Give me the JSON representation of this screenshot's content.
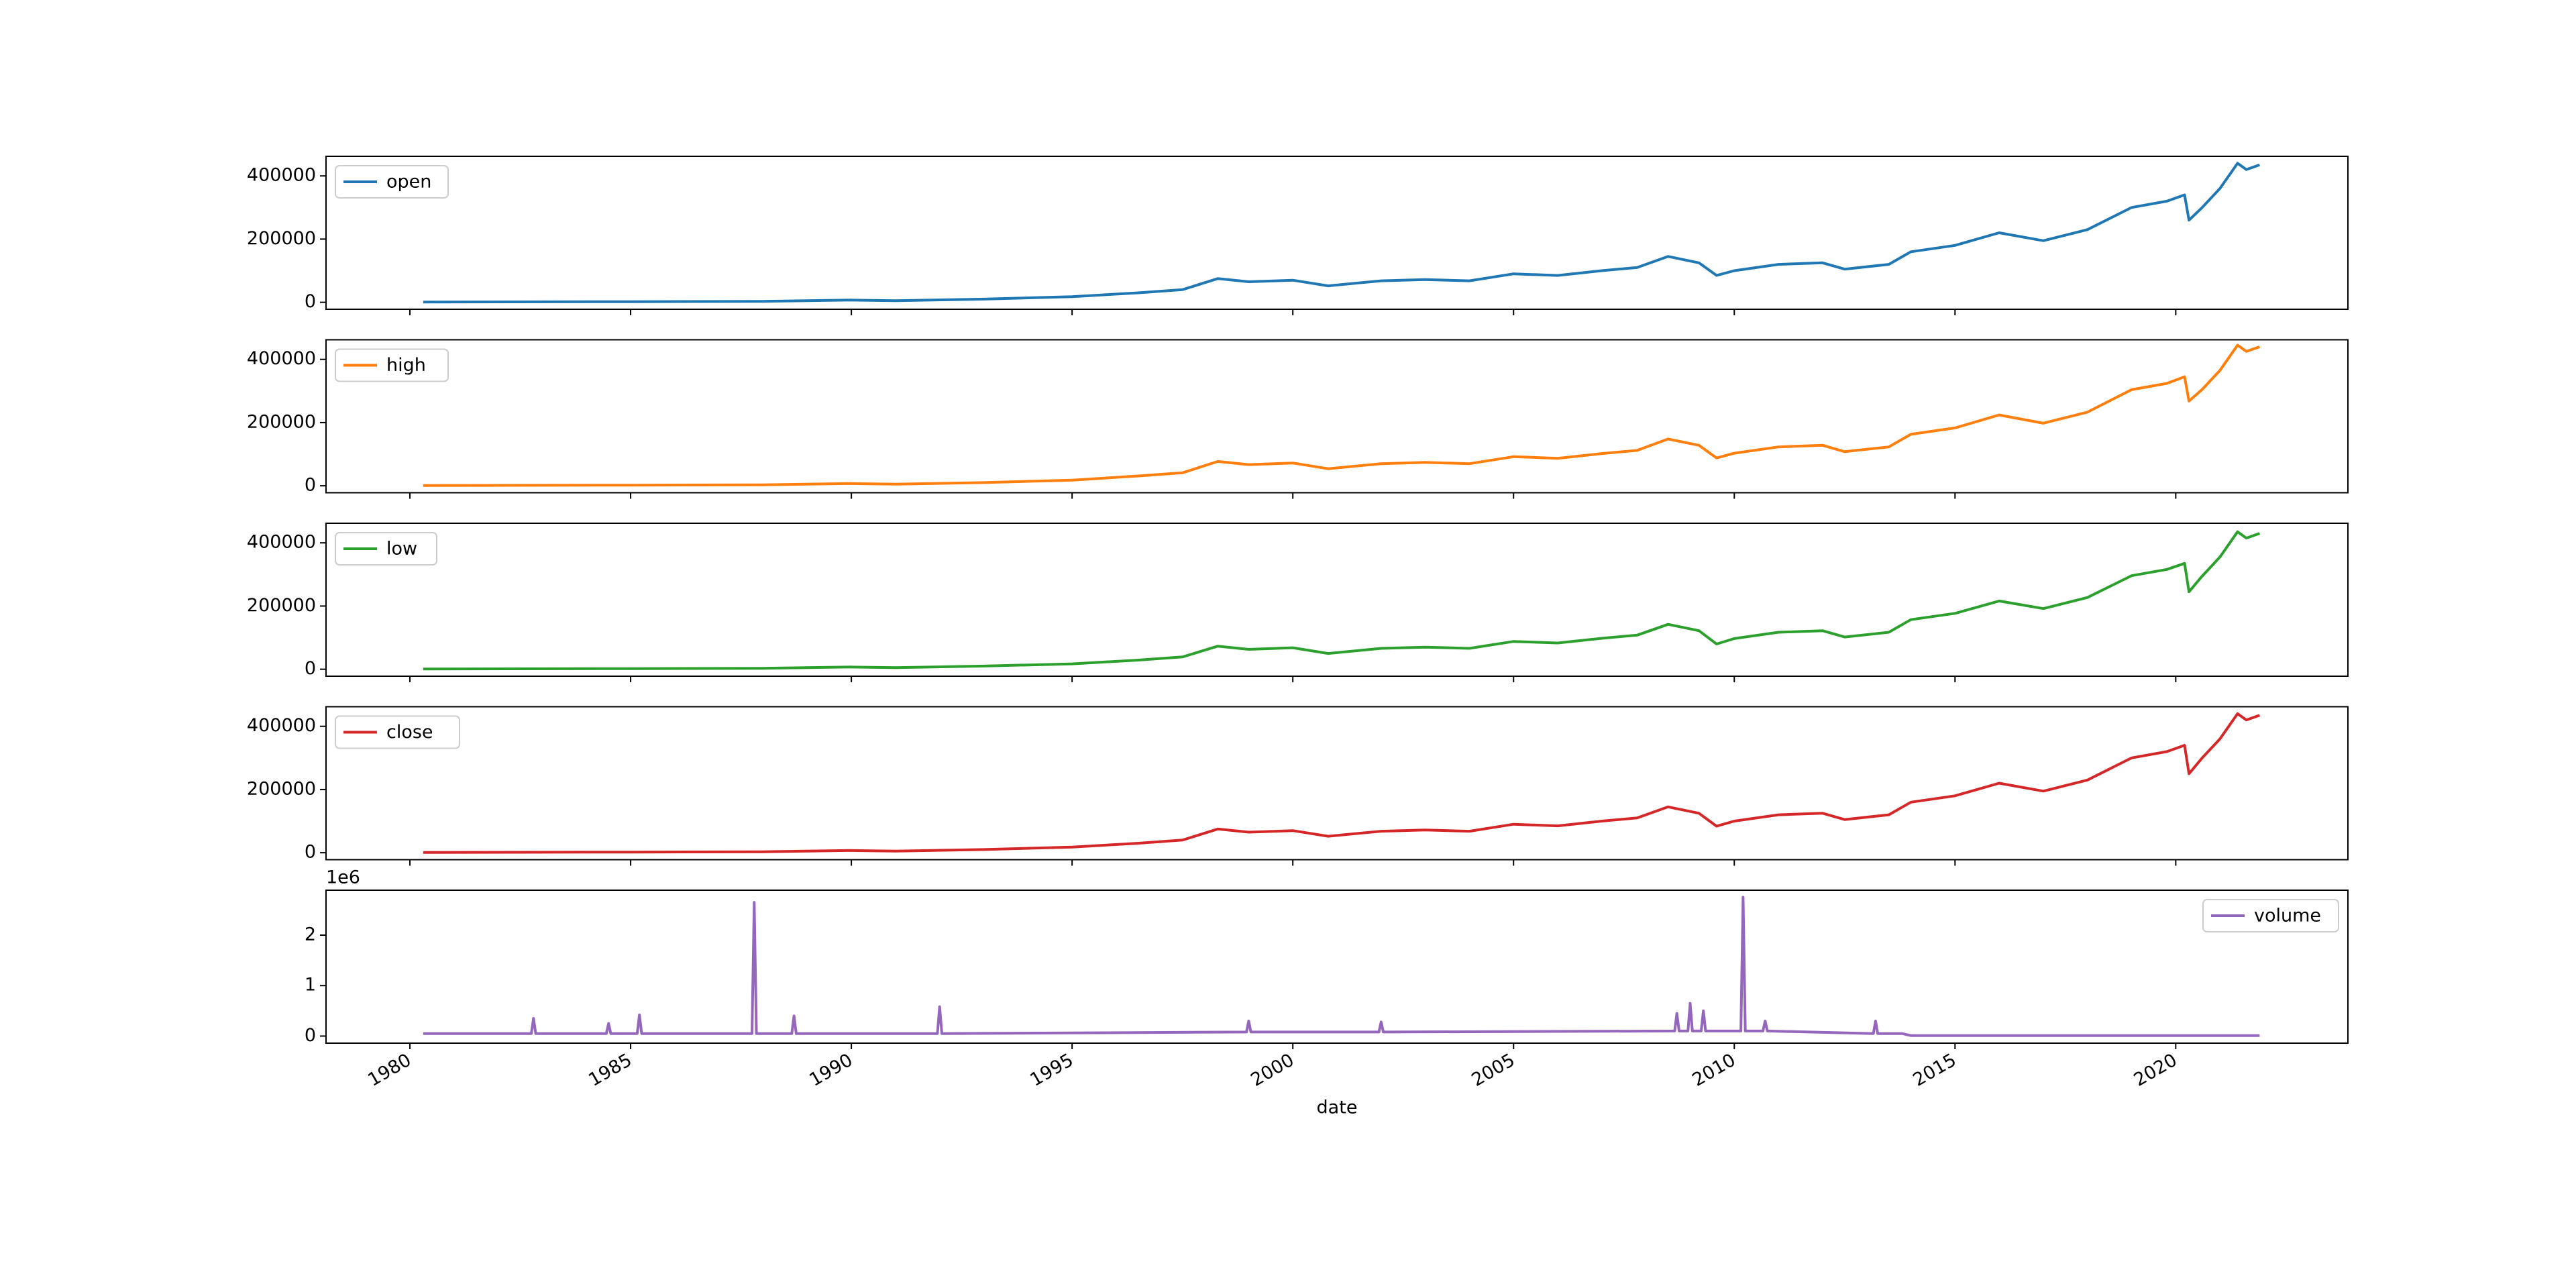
{
  "chart_data": [
    {
      "type": "line",
      "xlim": [
        1978.1,
        2023.9
      ],
      "ylim": [
        -22000,
        462000
      ],
      "yticks": [
        0,
        200000,
        400000
      ],
      "legend": "upper left",
      "x": [
        1980.3,
        1985,
        1988,
        1990,
        1991,
        1993,
        1995,
        1996.5,
        1997.5,
        1998.3,
        1999,
        2000,
        2000.8,
        2002,
        2003,
        2004,
        2005,
        2006,
        2007,
        2007.8,
        2008.5,
        2009.2,
        2009.6,
        2010,
        2011,
        2012,
        2012.5,
        2013.5,
        2014,
        2015,
        2016,
        2017,
        2018,
        2019,
        2019.8,
        2020.2,
        2020.3,
        2020.6,
        2021,
        2021.4,
        2021.6,
        2021.9
      ],
      "series": [
        {
          "name": "open",
          "color": "#1f77b4",
          "values": [
            1000,
            2000,
            3000,
            7000,
            5000,
            10000,
            18000,
            30000,
            40000,
            75000,
            65000,
            70000,
            52000,
            68000,
            72000,
            68000,
            90000,
            85000,
            100000,
            110000,
            145000,
            125000,
            85000,
            100000,
            120000,
            125000,
            105000,
            120000,
            160000,
            180000,
            220000,
            195000,
            230000,
            300000,
            320000,
            340000,
            260000,
            300000,
            360000,
            440000,
            420000,
            435000
          ]
        }
      ]
    },
    {
      "type": "line",
      "xlim": [
        1978.1,
        2023.9
      ],
      "ylim": [
        -22000,
        462000
      ],
      "yticks": [
        0,
        200000,
        400000
      ],
      "legend": "upper left",
      "x": [
        1980.3,
        1985,
        1988,
        1990,
        1991,
        1993,
        1995,
        1996.5,
        1997.5,
        1998.3,
        1999,
        2000,
        2000.8,
        2002,
        2003,
        2004,
        2005,
        2006,
        2007,
        2007.8,
        2008.5,
        2009.2,
        2009.6,
        2010,
        2011,
        2012,
        2012.5,
        2013.5,
        2014,
        2015,
        2016,
        2017,
        2018,
        2019,
        2019.8,
        2020.2,
        2020.3,
        2020.6,
        2021,
        2021.4,
        2021.6,
        2021.9
      ],
      "series": [
        {
          "name": "high",
          "color": "#ff7f0e",
          "values": [
            1000,
            2000,
            3000,
            7000,
            5000,
            10000,
            18000,
            31000,
            41000,
            77000,
            67000,
            72000,
            54000,
            70000,
            74000,
            70000,
            92000,
            87000,
            102000,
            112000,
            148000,
            128000,
            88000,
            103000,
            123000,
            128000,
            108000,
            123000,
            163000,
            183000,
            224000,
            198000,
            233000,
            304000,
            324000,
            345000,
            268000,
            305000,
            365000,
            445000,
            425000,
            440000
          ]
        }
      ]
    },
    {
      "type": "line",
      "xlim": [
        1978.1,
        2023.9
      ],
      "ylim": [
        -22000,
        462000
      ],
      "yticks": [
        0,
        200000,
        400000
      ],
      "legend": "upper left",
      "x": [
        1980.3,
        1985,
        1988,
        1990,
        1991,
        1993,
        1995,
        1996.5,
        1997.5,
        1998.3,
        1999,
        2000,
        2000.8,
        2002,
        2003,
        2004,
        2005,
        2006,
        2007,
        2007.8,
        2008.5,
        2009.2,
        2009.6,
        2010,
        2011,
        2012,
        2012.5,
        2013.5,
        2014,
        2015,
        2016,
        2017,
        2018,
        2019,
        2019.8,
        2020.2,
        2020.3,
        2020.6,
        2021,
        2021.4,
        2021.6,
        2021.9
      ],
      "series": [
        {
          "name": "low",
          "color": "#2ca02c",
          "values": [
            1000,
            2000,
            3000,
            7000,
            5000,
            10000,
            17000,
            29000,
            39000,
            73000,
            63000,
            68000,
            50000,
            66000,
            70000,
            66000,
            88000,
            83000,
            98000,
            108000,
            142000,
            122000,
            80000,
            97000,
            117000,
            122000,
            102000,
            117000,
            157000,
            177000,
            216000,
            192000,
            227000,
            296000,
            316000,
            335000,
            245000,
            295000,
            355000,
            435000,
            415000,
            430000
          ]
        }
      ]
    },
    {
      "type": "line",
      "xlim": [
        1978.1,
        2023.9
      ],
      "ylim": [
        -22000,
        462000
      ],
      "yticks": [
        0,
        200000,
        400000
      ],
      "legend": "upper left",
      "x": [
        1980.3,
        1985,
        1988,
        1990,
        1991,
        1993,
        1995,
        1996.5,
        1997.5,
        1998.3,
        1999,
        2000,
        2000.8,
        2002,
        2003,
        2004,
        2005,
        2006,
        2007,
        2007.8,
        2008.5,
        2009.2,
        2009.6,
        2010,
        2011,
        2012,
        2012.5,
        2013.5,
        2014,
        2015,
        2016,
        2017,
        2018,
        2019,
        2019.8,
        2020.2,
        2020.3,
        2020.6,
        2021,
        2021.4,
        2021.6,
        2021.9
      ],
      "series": [
        {
          "name": "close",
          "color": "#d62728",
          "values": [
            1000,
            2000,
            3000,
            7000,
            5000,
            10000,
            18000,
            30000,
            40000,
            75000,
            65000,
            70000,
            52000,
            68000,
            72000,
            68000,
            90000,
            85000,
            100000,
            110000,
            145000,
            125000,
            84000,
            100000,
            120000,
            125000,
            105000,
            120000,
            160000,
            180000,
            220000,
            195000,
            230000,
            300000,
            320000,
            340000,
            250000,
            300000,
            360000,
            440000,
            420000,
            435000
          ]
        }
      ]
    },
    {
      "type": "line",
      "xlim": [
        1978.1,
        2023.9
      ],
      "ylim": [
        -0.14,
        2.89
      ],
      "yticks": [
        0,
        1,
        2
      ],
      "offset_label": "1e6",
      "legend": "upper right",
      "xlabel": "date",
      "xticks": [
        1980,
        1985,
        1990,
        1995,
        2000,
        2005,
        2010,
        2015,
        2020
      ],
      "x": [
        1980.3,
        1982.75,
        1982.8,
        1982.85,
        1984.45,
        1984.5,
        1984.55,
        1985.15,
        1985.2,
        1985.25,
        1987.75,
        1987.8,
        1987.85,
        1988.65,
        1988.7,
        1988.75,
        1991.95,
        1992,
        1992.05,
        1998.95,
        1999,
        1999.05,
        2001.95,
        2002,
        2002.05,
        2008.65,
        2008.7,
        2008.75,
        2008.95,
        2009,
        2009.05,
        2009.25,
        2009.3,
        2009.35,
        2010.15,
        2010.2,
        2010.25,
        2010.65,
        2010.7,
        2010.75,
        2013.15,
        2013.2,
        2013.25,
        2013.8,
        2014,
        2021.9
      ],
      "series": [
        {
          "name": "volume",
          "color": "#9467bd",
          "values": [
            0.05,
            0.05,
            0.35,
            0.05,
            0.05,
            0.25,
            0.05,
            0.05,
            0.42,
            0.05,
            0.05,
            2.65,
            0.05,
            0.05,
            0.4,
            0.05,
            0.05,
            0.58,
            0.05,
            0.08,
            0.3,
            0.08,
            0.08,
            0.28,
            0.08,
            0.1,
            0.45,
            0.1,
            0.1,
            0.65,
            0.1,
            0.1,
            0.5,
            0.1,
            0.1,
            2.75,
            0.1,
            0.1,
            0.3,
            0.1,
            0.05,
            0.3,
            0.05,
            0.05,
            0.01,
            0.01
          ]
        }
      ]
    }
  ]
}
